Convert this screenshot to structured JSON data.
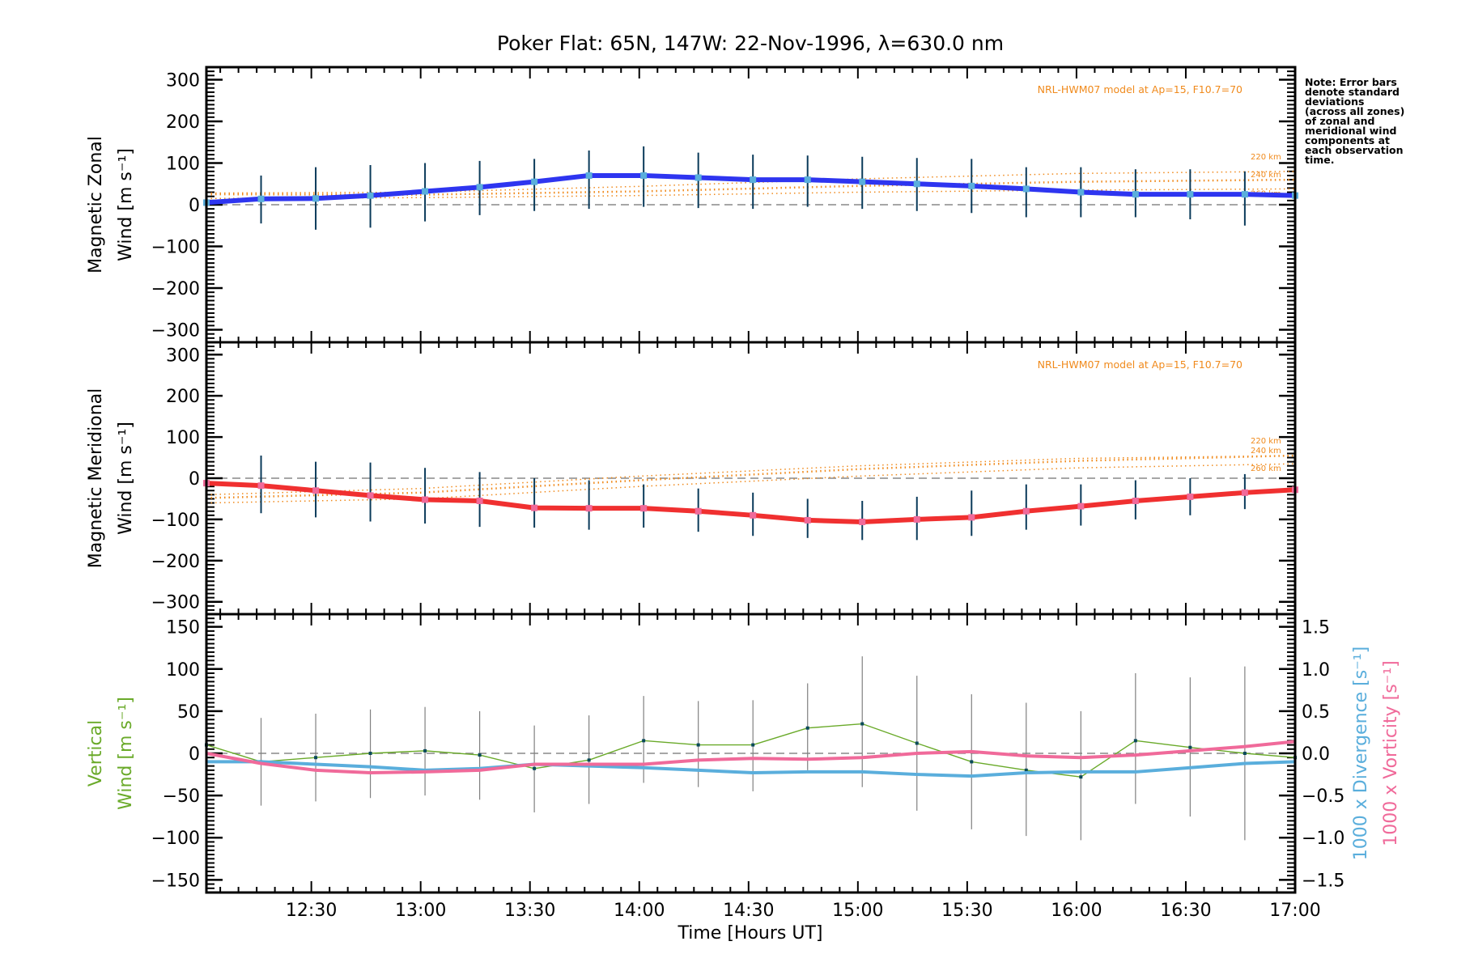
{
  "chart_data": {
    "type": "line",
    "title": "Poker Flat: 65N, 147W: 22-Nov-1996, λ=630.0 nm",
    "xlabel": "Time [Hours UT]",
    "x_range_hours": [
      12.02,
      17.0
    ],
    "x_ticks": [
      {
        "value": 12.5,
        "label": "12:30"
      },
      {
        "value": 13.0,
        "label": "13:00"
      },
      {
        "value": 13.5,
        "label": "13:30"
      },
      {
        "value": 14.0,
        "label": "14:00"
      },
      {
        "value": 14.5,
        "label": "14:30"
      },
      {
        "value": 15.0,
        "label": "15:00"
      },
      {
        "value": 15.5,
        "label": "15:30"
      },
      {
        "value": 16.0,
        "label": "16:00"
      },
      {
        "value": 16.5,
        "label": "16:30"
      },
      {
        "value": 17.0,
        "label": "17:00"
      }
    ],
    "note": "Note: Error bars\ndenote standard\ndeviations\n(across all zones)\nof zonal and\nmeridional wind\ncomponents at\neach observation\ntime.",
    "panels": [
      {
        "id": "zonal",
        "ylabel_line1": "Magnetic Zonal",
        "ylabel_line2": "Wind [m s⁻¹]",
        "ylabel_color": "#000000",
        "ylim": [
          -330,
          330
        ],
        "y_ticks": [
          300,
          200,
          100,
          0,
          -100,
          -200,
          -300
        ],
        "model_label": "NRL-HWM07 model at Ap=15, F10.7=70",
        "model_color": "#f08a1c",
        "model_series": [
          {
            "name": "220 km",
            "x": [
              12.02,
              13.0,
              14.0,
              15.0,
              16.0,
              17.0
            ],
            "y": [
              28,
              30,
              44,
              62,
              75,
              80
            ]
          },
          {
            "name": "240 km",
            "x": [
              12.02,
              13.0,
              14.0,
              15.0,
              16.0,
              17.0
            ],
            "y": [
              25,
              24,
              32,
              45,
              55,
              60
            ]
          },
          {
            "name": "260 km",
            "x": [
              12.02,
              13.0,
              14.0,
              15.0,
              16.0,
              17.0
            ],
            "y": [
              15,
              17,
              22,
              30,
              35,
              38
            ]
          }
        ],
        "series": [
          {
            "name": "Magnetic Zonal Wind",
            "color": "#2e35f0",
            "x": [
              12.02,
              12.27,
              12.52,
              12.77,
              13.02,
              13.27,
              13.52,
              13.77,
              14.02,
              14.27,
              14.52,
              14.77,
              15.02,
              15.27,
              15.52,
              15.77,
              16.02,
              16.27,
              16.52,
              16.77,
              17.0
            ],
            "y": [
              5,
              14,
              15,
              22,
              32,
              42,
              55,
              70,
              70,
              65,
              60,
              60,
              55,
              50,
              45,
              38,
              30,
              25,
              25,
              25,
              22
            ],
            "err_low": [
              -40,
              -45,
              -60,
              -55,
              -40,
              -25,
              -15,
              -10,
              -5,
              -8,
              -10,
              -5,
              -10,
              -15,
              -20,
              -30,
              -30,
              -30,
              -35,
              -50,
              -40
            ],
            "err_high": [
              50,
              70,
              90,
              95,
              100,
              105,
              110,
              130,
              140,
              125,
              120,
              118,
              115,
              112,
              110,
              90,
              90,
              85,
              85,
              80,
              70
            ]
          }
        ]
      },
      {
        "id": "meridional",
        "ylabel_line1": "Magnetic Meridional",
        "ylabel_line2": "Wind [m s⁻¹]",
        "ylabel_color": "#000000",
        "ylim": [
          -330,
          330
        ],
        "y_ticks": [
          300,
          200,
          100,
          0,
          -100,
          -200,
          -300
        ],
        "model_label": "NRL-HWM07 model at Ap=15, F10.7=70",
        "model_color": "#f08a1c",
        "model_series": [
          {
            "name": "220 km",
            "x": [
              12.02,
              13.0,
              14.0,
              15.0,
              16.0,
              17.0
            ],
            "y": [
              -40,
              -25,
              5,
              30,
              48,
              55
            ]
          },
          {
            "name": "240 km",
            "x": [
              12.02,
              13.0,
              14.0,
              15.0,
              16.0,
              17.0
            ],
            "y": [
              -48,
              -35,
              -5,
              22,
              42,
              55
            ]
          },
          {
            "name": "260 km",
            "x": [
              12.02,
              13.0,
              14.0,
              15.0,
              16.0,
              17.0
            ],
            "y": [
              -60,
              -50,
              -20,
              5,
              25,
              35
            ]
          }
        ],
        "series": [
          {
            "name": "Magnetic Meridional Wind",
            "color": "#f03030",
            "x": [
              12.02,
              12.27,
              12.52,
              12.77,
              13.02,
              13.27,
              13.52,
              13.77,
              14.02,
              14.27,
              14.52,
              14.77,
              15.02,
              15.27,
              15.52,
              15.77,
              16.02,
              16.27,
              16.52,
              16.77,
              17.0
            ],
            "y": [
              -12,
              -18,
              -30,
              -42,
              -52,
              -55,
              -72,
              -73,
              -73,
              -80,
              -90,
              -102,
              -106,
              -100,
              -95,
              -80,
              -68,
              -55,
              -45,
              -35,
              -28
            ],
            "err_low": [
              -85,
              -85,
              -95,
              -105,
              -110,
              -118,
              -120,
              -125,
              -120,
              -130,
              -140,
              -145,
              -150,
              -150,
              -140,
              -125,
              -115,
              -100,
              -90,
              -75,
              -60
            ],
            "err_high": [
              55,
              55,
              40,
              38,
              25,
              15,
              0,
              -5,
              -15,
              -25,
              -35,
              -50,
              -55,
              -45,
              -30,
              -15,
              -15,
              -5,
              0,
              10,
              20
            ]
          }
        ]
      },
      {
        "id": "vertical",
        "ylabel_line1": "Vertical",
        "ylabel_line2": "Wind [m s⁻¹]",
        "ylabel_color": "#6aaa2a",
        "ylim": [
          -165,
          165
        ],
        "y_ticks": [
          150,
          100,
          50,
          0,
          -50,
          -100,
          -150
        ],
        "right_axis": {
          "ylim": [
            -1.65,
            1.65
          ],
          "y_ticks": [
            1.5,
            1.0,
            0.5,
            0.0,
            -0.5,
            -1.0,
            -1.5
          ],
          "tick_labels": [
            "1.5",
            "1.0",
            "0.5",
            "0.0",
            "−0.5",
            "−1.0",
            "−1.5"
          ],
          "label_divergence": "1000 x Divergence [s⁻¹]",
          "label_divergence_color": "#5aaedc",
          "label_vorticity": "1000 x Vorticity [s⁻¹]",
          "label_vorticity_color": "#f06a9a"
        },
        "series": [
          {
            "name": "Vertical Wind",
            "color": "#6aaa2a",
            "x": [
              12.02,
              12.27,
              12.52,
              12.77,
              13.02,
              13.27,
              13.52,
              13.77,
              14.02,
              14.27,
              14.52,
              14.77,
              15.02,
              15.27,
              15.52,
              15.77,
              16.02,
              16.27,
              16.52,
              16.77,
              17.0
            ],
            "y": [
              10,
              -10,
              -5,
              0,
              3,
              -2,
              -18,
              -8,
              15,
              10,
              10,
              30,
              35,
              12,
              -10,
              -20,
              -28,
              15,
              7,
              0,
              -5
            ],
            "err_low": [
              null,
              -62,
              -57,
              -53,
              -50,
              -55,
              -70,
              -60,
              -35,
              -40,
              -45,
              -20,
              -40,
              -68,
              -90,
              -98,
              -103,
              -60,
              -75,
              -103,
              null
            ],
            "err_high": [
              null,
              42,
              47,
              52,
              55,
              50,
              33,
              45,
              68,
              62,
              63,
              83,
              115,
              92,
              70,
              60,
              50,
              95,
              90,
              103,
              null
            ]
          },
          {
            "name": "1000 x Divergence",
            "color": "#5aaedc",
            "axis": "right",
            "x": [
              12.02,
              12.27,
              12.52,
              12.77,
              13.02,
              13.27,
              13.52,
              13.77,
              14.02,
              14.27,
              14.52,
              14.77,
              15.02,
              15.27,
              15.52,
              15.77,
              16.02,
              16.27,
              16.52,
              16.77,
              17.0
            ],
            "y": [
              -0.1,
              -0.1,
              -0.13,
              -0.16,
              -0.2,
              -0.18,
              -0.13,
              -0.15,
              -0.17,
              -0.2,
              -0.23,
              -0.22,
              -0.22,
              -0.25,
              -0.27,
              -0.23,
              -0.22,
              -0.22,
              -0.17,
              -0.12,
              -0.1
            ]
          },
          {
            "name": "1000 x Vorticity",
            "color": "#f06a9a",
            "axis": "right",
            "x": [
              12.02,
              12.27,
              12.52,
              12.77,
              13.02,
              13.27,
              13.52,
              13.77,
              14.02,
              14.27,
              14.52,
              14.77,
              15.02,
              15.27,
              15.52,
              15.77,
              16.02,
              16.27,
              16.52,
              16.77,
              17.0
            ],
            "y": [
              0.0,
              -0.12,
              -0.2,
              -0.23,
              -0.22,
              -0.2,
              -0.13,
              -0.13,
              -0.13,
              -0.08,
              -0.06,
              -0.07,
              -0.05,
              0.0,
              0.02,
              -0.03,
              -0.05,
              -0.02,
              0.03,
              0.08,
              0.14
            ]
          }
        ]
      }
    ]
  }
}
